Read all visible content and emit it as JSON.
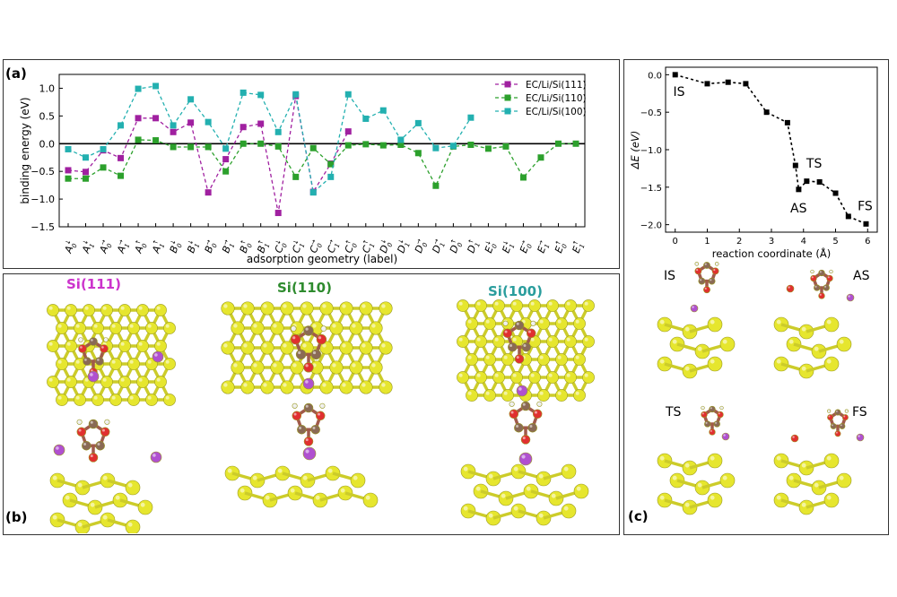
{
  "panel_labels": {
    "a": "(a)",
    "b": "(b)",
    "c": "(c)"
  },
  "surface_titles": [
    {
      "text": "Si(111)",
      "color": "#cc33cc"
    },
    {
      "text": "Si(110)",
      "color": "#2e8b2e"
    },
    {
      "text": "Si(100)",
      "color": "#2a9d9d"
    }
  ],
  "colors": {
    "si111": "#a020a0",
    "si110": "#2ca02c",
    "si100": "#23b0b0",
    "silicon": "#e6e62e",
    "oxygen": "#e03030",
    "carbon": "#8a6a55",
    "lithium": "#b050d0"
  },
  "chart_data": [
    {
      "type": "line",
      "xlabel": "adsorption geometry (label)",
      "ylabel": "binding energy (eV)",
      "ylim": [
        -1.5,
        1.25
      ],
      "yticks": [
        -1.5,
        -1.0,
        -0.5,
        0.0,
        0.5,
        1.0
      ],
      "ytick_labels": [
        "−1.5",
        "−1.0",
        "−0.5",
        "0.0",
        "0.5",
        "1.0"
      ],
      "categories": [
        {
          "b": "A",
          "s": "0",
          "p": "↓"
        },
        {
          "b": "A",
          "s": "1",
          "p": "↓"
        },
        {
          "b": "A",
          "s": "0",
          "p": "→"
        },
        {
          "b": "A",
          "s": "1",
          "p": "→"
        },
        {
          "b": "A",
          "s": "0",
          "p": "↑"
        },
        {
          "b": "A",
          "s": "1",
          "p": "↑"
        },
        {
          "b": "B",
          "s": "0",
          "p": "↓"
        },
        {
          "b": "B",
          "s": "1",
          "p": "↓"
        },
        {
          "b": "B",
          "s": "0",
          "p": "→"
        },
        {
          "b": "B",
          "s": "1",
          "p": "→"
        },
        {
          "b": "B",
          "s": "0",
          "p": "↑"
        },
        {
          "b": "B",
          "s": "1",
          "p": "↑"
        },
        {
          "b": "C",
          "s": "0",
          "p": "↓"
        },
        {
          "b": "C",
          "s": "1",
          "p": "↓"
        },
        {
          "b": "C",
          "s": "0",
          "p": "→"
        },
        {
          "b": "C",
          "s": "1",
          "p": "→"
        },
        {
          "b": "C",
          "s": "0",
          "p": "↑"
        },
        {
          "b": "C",
          "s": "1",
          "p": "↑"
        },
        {
          "b": "D",
          "s": "0",
          "p": "↓"
        },
        {
          "b": "D",
          "s": "1",
          "p": "↓"
        },
        {
          "b": "D",
          "s": "0",
          "p": "→"
        },
        {
          "b": "D",
          "s": "1",
          "p": "→"
        },
        {
          "b": "D",
          "s": "0",
          "p": "↑"
        },
        {
          "b": "D",
          "s": "1",
          "p": "↑"
        },
        {
          "b": "E",
          "s": "0",
          "p": "↓"
        },
        {
          "b": "E",
          "s": "1",
          "p": "↓"
        },
        {
          "b": "E",
          "s": "0",
          "p": "→"
        },
        {
          "b": "E",
          "s": "1",
          "p": "→"
        },
        {
          "b": "E",
          "s": "0",
          "p": "↑"
        },
        {
          "b": "E",
          "s": "1",
          "p": "↑"
        }
      ],
      "legend_position": "top-right",
      "series": [
        {
          "name": "EC/Li/Si(111)",
          "color": "#a020a0",
          "values": [
            -0.48,
            -0.51,
            -0.12,
            -0.26,
            0.46,
            0.46,
            0.21,
            0.38,
            -0.88,
            -0.28,
            0.3,
            0.36,
            -1.25,
            0.86,
            -0.87,
            -0.36,
            0.22,
            null,
            null,
            null,
            null,
            null,
            null,
            null,
            null,
            null,
            null,
            null,
            null,
            null
          ]
        },
        {
          "name": "EC/Li/Si(110)",
          "color": "#2ca02c",
          "values": [
            -0.63,
            -0.63,
            -0.43,
            -0.58,
            0.07,
            0.06,
            -0.06,
            -0.06,
            -0.06,
            -0.5,
            0.0,
            0.0,
            -0.05,
            -0.6,
            -0.08,
            -0.37,
            -0.03,
            -0.01,
            -0.03,
            -0.02,
            -0.17,
            -0.76,
            -0.05,
            -0.02,
            -0.09,
            -0.05,
            -0.61,
            -0.25,
            0.0,
            0.0
          ]
        },
        {
          "name": "EC/Li/Si(100)",
          "color": "#23b0b0",
          "values": [
            -0.1,
            -0.25,
            -0.1,
            0.33,
            0.99,
            1.04,
            0.33,
            0.8,
            0.39,
            -0.09,
            0.92,
            0.88,
            0.21,
            0.89,
            -0.88,
            -0.6,
            0.89,
            0.45,
            0.6,
            0.07,
            0.37,
            -0.08,
            -0.04,
            0.47,
            null,
            null,
            null,
            null,
            null,
            null
          ]
        }
      ]
    },
    {
      "type": "line",
      "xlabel": "reaction coordinate (Å)",
      "ylabel": "ΔE (eV)",
      "xlim": [
        -0.3,
        6.3
      ],
      "ylim": [
        -2.1,
        0.1
      ],
      "xticks": [
        0,
        1,
        2,
        3,
        4,
        5,
        6
      ],
      "yticks": [
        0.0,
        -0.5,
        -1.0,
        -1.5,
        -2.0
      ],
      "ytick_labels": [
        "0.0",
        "−0.5",
        "−1.0",
        "−1.5",
        "−2.0"
      ],
      "x": [
        0.0,
        1.0,
        1.65,
        2.2,
        2.85,
        3.5,
        3.75,
        3.85,
        4.1,
        4.5,
        5.0,
        5.4,
        5.95
      ],
      "y": [
        0.0,
        -0.12,
        -0.1,
        -0.12,
        -0.5,
        -0.64,
        -1.21,
        -1.53,
        -1.42,
        -1.43,
        -1.58,
        -1.89,
        -1.99
      ],
      "annotations": [
        {
          "text": "IS",
          "x": 0.05,
          "y": -0.22
        },
        {
          "text": "TS",
          "x": 4.2,
          "y": -1.18
        },
        {
          "text": "AS",
          "x": 3.7,
          "y": -1.78
        },
        {
          "text": "FS",
          "x": 5.8,
          "y": -1.75
        }
      ]
    }
  ],
  "state_labels": {
    "IS": "IS",
    "AS": "AS",
    "TS": "TS",
    "FS": "FS"
  }
}
